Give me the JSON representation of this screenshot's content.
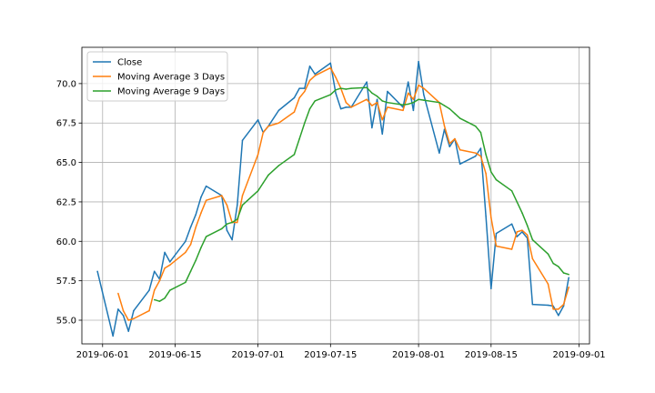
{
  "chart_data": {
    "type": "line",
    "title": "",
    "xlabel": "",
    "ylabel": "",
    "x_axis": {
      "kind": "date",
      "range": [
        "2019-05-28",
        "2019-09-03"
      ],
      "ticks": [
        "2019-06-01",
        "2019-06-15",
        "2019-07-01",
        "2019-07-15",
        "2019-08-01",
        "2019-08-15",
        "2019-09-01"
      ]
    },
    "y_axis": {
      "range": [
        53.5,
        72.3
      ],
      "ticks": [
        55.0,
        57.5,
        60.0,
        62.5,
        65.0,
        67.5,
        70.0
      ],
      "tick_labels": [
        "55.0",
        "57.5",
        "60.0",
        "62.5",
        "65.0",
        "67.5",
        "70.0"
      ]
    },
    "grid": true,
    "legend_position": "upper-left",
    "series": [
      {
        "name": "Close",
        "color": "#1f77b4",
        "points": [
          [
            "2019-05-31",
            58.1
          ],
          [
            "2019-06-03",
            54.0
          ],
          [
            "2019-06-04",
            55.7
          ],
          [
            "2019-06-05",
            55.3
          ],
          [
            "2019-06-06",
            54.3
          ],
          [
            "2019-06-07",
            55.6
          ],
          [
            "2019-06-10",
            56.9
          ],
          [
            "2019-06-11",
            58.1
          ],
          [
            "2019-06-12",
            57.6
          ],
          [
            "2019-06-13",
            59.3
          ],
          [
            "2019-06-14",
            58.7
          ],
          [
            "2019-06-17",
            60.0
          ],
          [
            "2019-06-18",
            60.9
          ],
          [
            "2019-06-19",
            61.7
          ],
          [
            "2019-06-20",
            62.8
          ],
          [
            "2019-06-21",
            63.5
          ],
          [
            "2019-06-24",
            62.9
          ],
          [
            "2019-06-25",
            60.7
          ],
          [
            "2019-06-26",
            60.1
          ],
          [
            "2019-06-27",
            62.3
          ],
          [
            "2019-06-28",
            66.4
          ],
          [
            "2019-07-01",
            67.7
          ],
          [
            "2019-07-02",
            66.9
          ],
          [
            "2019-07-03",
            67.3
          ],
          [
            "2019-07-05",
            68.3
          ],
          [
            "2019-07-08",
            69.1
          ],
          [
            "2019-07-09",
            69.7
          ],
          [
            "2019-07-10",
            69.7
          ],
          [
            "2019-07-11",
            71.1
          ],
          [
            "2019-07-12",
            70.6
          ],
          [
            "2019-07-15",
            71.3
          ],
          [
            "2019-07-16",
            69.4
          ],
          [
            "2019-07-17",
            68.4
          ],
          [
            "2019-07-18",
            68.5
          ],
          [
            "2019-07-19",
            68.5
          ],
          [
            "2019-07-22",
            70.1
          ],
          [
            "2019-07-23",
            67.2
          ],
          [
            "2019-07-24",
            69.0
          ],
          [
            "2019-07-25",
            66.8
          ],
          [
            "2019-07-26",
            69.5
          ],
          [
            "2019-07-29",
            68.5
          ],
          [
            "2019-07-30",
            70.1
          ],
          [
            "2019-07-31",
            68.3
          ],
          [
            "2019-08-01",
            71.4
          ],
          [
            "2019-08-02",
            69.3
          ],
          [
            "2019-08-05",
            65.6
          ],
          [
            "2019-08-06",
            67.1
          ],
          [
            "2019-08-07",
            66.0
          ],
          [
            "2019-08-08",
            66.5
          ],
          [
            "2019-08-09",
            64.9
          ],
          [
            "2019-08-12",
            65.4
          ],
          [
            "2019-08-13",
            65.9
          ],
          [
            "2019-08-14",
            61.6
          ],
          [
            "2019-08-15",
            57.0
          ],
          [
            "2019-08-16",
            60.5
          ],
          [
            "2019-08-19",
            61.1
          ],
          [
            "2019-08-20",
            60.3
          ],
          [
            "2019-08-21",
            60.6
          ],
          [
            "2019-08-22",
            60.2
          ],
          [
            "2019-08-23",
            56.0
          ],
          [
            "2019-08-26",
            55.95
          ],
          [
            "2019-08-27",
            55.9
          ],
          [
            "2019-08-28",
            55.3
          ],
          [
            "2019-08-29",
            55.9
          ],
          [
            "2019-08-30",
            57.7
          ]
        ]
      },
      {
        "name": "Moving Average 3 Days",
        "color": "#ff7f0e",
        "points": [
          [
            "2019-06-04",
            56.7
          ],
          [
            "2019-06-05",
            55.6
          ],
          [
            "2019-06-06",
            55.0
          ],
          [
            "2019-06-07",
            55.1
          ],
          [
            "2019-06-10",
            55.6
          ],
          [
            "2019-06-11",
            56.9
          ],
          [
            "2019-06-12",
            57.5
          ],
          [
            "2019-06-13",
            58.3
          ],
          [
            "2019-06-14",
            58.5
          ],
          [
            "2019-06-17",
            59.3
          ],
          [
            "2019-06-18",
            59.8
          ],
          [
            "2019-06-19",
            60.9
          ],
          [
            "2019-06-20",
            61.8
          ],
          [
            "2019-06-21",
            62.6
          ],
          [
            "2019-06-24",
            62.9
          ],
          [
            "2019-06-25",
            62.3
          ],
          [
            "2019-06-26",
            61.2
          ],
          [
            "2019-06-27",
            61.2
          ],
          [
            "2019-06-28",
            62.9
          ],
          [
            "2019-07-01",
            65.5
          ],
          [
            "2019-07-02",
            66.9
          ],
          [
            "2019-07-03",
            67.3
          ],
          [
            "2019-07-05",
            67.5
          ],
          [
            "2019-07-08",
            68.2
          ],
          [
            "2019-07-09",
            69.1
          ],
          [
            "2019-07-10",
            69.5
          ],
          [
            "2019-07-11",
            70.2
          ],
          [
            "2019-07-12",
            70.5
          ],
          [
            "2019-07-15",
            71.0
          ],
          [
            "2019-07-16",
            70.4
          ],
          [
            "2019-07-17",
            69.7
          ],
          [
            "2019-07-18",
            68.8
          ],
          [
            "2019-07-19",
            68.5
          ],
          [
            "2019-07-22",
            69.0
          ],
          [
            "2019-07-23",
            68.6
          ],
          [
            "2019-07-24",
            68.8
          ],
          [
            "2019-07-25",
            67.7
          ],
          [
            "2019-07-26",
            68.5
          ],
          [
            "2019-07-29",
            68.3
          ],
          [
            "2019-07-30",
            69.4
          ],
          [
            "2019-07-31",
            69.0
          ],
          [
            "2019-08-01",
            69.9
          ],
          [
            "2019-08-02",
            69.7
          ],
          [
            "2019-08-05",
            68.8
          ],
          [
            "2019-08-06",
            67.3
          ],
          [
            "2019-08-07",
            66.2
          ],
          [
            "2019-08-08",
            66.5
          ],
          [
            "2019-08-09",
            65.8
          ],
          [
            "2019-08-12",
            65.6
          ],
          [
            "2019-08-13",
            65.4
          ],
          [
            "2019-08-14",
            64.3
          ],
          [
            "2019-08-15",
            61.5
          ],
          [
            "2019-08-16",
            59.7
          ],
          [
            "2019-08-19",
            59.5
          ],
          [
            "2019-08-20",
            60.6
          ],
          [
            "2019-08-21",
            60.7
          ],
          [
            "2019-08-22",
            60.4
          ],
          [
            "2019-08-23",
            58.9
          ],
          [
            "2019-08-26",
            57.3
          ],
          [
            "2019-08-27",
            55.7
          ],
          [
            "2019-08-28",
            55.7
          ],
          [
            "2019-08-29",
            56.0
          ],
          [
            "2019-08-30",
            57.1
          ]
        ]
      },
      {
        "name": "Moving Average 9 Days",
        "color": "#2ca02c",
        "points": [
          [
            "2019-06-11",
            56.3
          ],
          [
            "2019-06-12",
            56.2
          ],
          [
            "2019-06-13",
            56.4
          ],
          [
            "2019-06-14",
            56.9
          ],
          [
            "2019-06-17",
            57.4
          ],
          [
            "2019-06-18",
            58.1
          ],
          [
            "2019-06-19",
            58.8
          ],
          [
            "2019-06-20",
            59.6
          ],
          [
            "2019-06-21",
            60.3
          ],
          [
            "2019-06-24",
            60.8
          ],
          [
            "2019-06-25",
            61.1
          ],
          [
            "2019-06-26",
            61.2
          ],
          [
            "2019-06-27",
            61.4
          ],
          [
            "2019-06-28",
            62.3
          ],
          [
            "2019-07-01",
            63.2
          ],
          [
            "2019-07-02",
            63.7
          ],
          [
            "2019-07-03",
            64.2
          ],
          [
            "2019-07-05",
            64.8
          ],
          [
            "2019-07-08",
            65.5
          ],
          [
            "2019-07-09",
            66.5
          ],
          [
            "2019-07-10",
            67.5
          ],
          [
            "2019-07-11",
            68.4
          ],
          [
            "2019-07-12",
            68.9
          ],
          [
            "2019-07-15",
            69.3
          ],
          [
            "2019-07-16",
            69.6
          ],
          [
            "2019-07-17",
            69.7
          ],
          [
            "2019-07-18",
            69.65
          ],
          [
            "2019-07-19",
            69.7
          ],
          [
            "2019-07-22",
            69.75
          ],
          [
            "2019-07-23",
            69.4
          ],
          [
            "2019-07-24",
            69.2
          ],
          [
            "2019-07-25",
            68.9
          ],
          [
            "2019-07-26",
            68.8
          ],
          [
            "2019-07-29",
            68.65
          ],
          [
            "2019-07-30",
            68.7
          ],
          [
            "2019-07-31",
            68.8
          ],
          [
            "2019-08-01",
            69.0
          ],
          [
            "2019-08-02",
            68.95
          ],
          [
            "2019-08-05",
            68.8
          ],
          [
            "2019-08-06",
            68.6
          ],
          [
            "2019-08-07",
            68.4
          ],
          [
            "2019-08-08",
            68.1
          ],
          [
            "2019-08-09",
            67.8
          ],
          [
            "2019-08-12",
            67.3
          ],
          [
            "2019-08-13",
            66.9
          ],
          [
            "2019-08-14",
            65.5
          ],
          [
            "2019-08-15",
            64.4
          ],
          [
            "2019-08-16",
            63.9
          ],
          [
            "2019-08-19",
            63.2
          ],
          [
            "2019-08-20",
            62.5
          ],
          [
            "2019-08-21",
            61.8
          ],
          [
            "2019-08-22",
            61.0
          ],
          [
            "2019-08-23",
            60.1
          ],
          [
            "2019-08-26",
            59.2
          ],
          [
            "2019-08-27",
            58.6
          ],
          [
            "2019-08-28",
            58.4
          ],
          [
            "2019-08-29",
            58.0
          ],
          [
            "2019-08-30",
            57.9
          ]
        ]
      }
    ]
  },
  "colors": {
    "background": "#ffffff",
    "grid": "#b0b0b0",
    "axis": "#000000",
    "legend_border": "#cccccc"
  }
}
